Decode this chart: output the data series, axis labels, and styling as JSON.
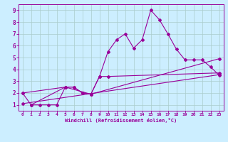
{
  "xlabel": "Windchill (Refroidissement éolien,°C)",
  "bg_color": "#cceeff",
  "line_color": "#990099",
  "grid_color": "#aacccc",
  "xlim": [
    -0.5,
    23.5
  ],
  "ylim": [
    0.5,
    9.5
  ],
  "xticks": [
    0,
    1,
    2,
    3,
    4,
    5,
    6,
    7,
    8,
    9,
    10,
    11,
    12,
    13,
    14,
    15,
    16,
    17,
    18,
    19,
    20,
    21,
    22,
    23
  ],
  "yticks": [
    1,
    2,
    3,
    4,
    5,
    6,
    7,
    8,
    9
  ],
  "series1_x": [
    1,
    2,
    3,
    4,
    5,
    6,
    7,
    8,
    9,
    10,
    11,
    12,
    13,
    14,
    15,
    16,
    17,
    18,
    19,
    20,
    21,
    22,
    23
  ],
  "series1_y": [
    1,
    1,
    1,
    1,
    2.5,
    2.5,
    2,
    1.9,
    3.4,
    5.5,
    6.5,
    7,
    5.8,
    6.5,
    9,
    8.2,
    7,
    5.7,
    4.8,
    4.8,
    4.8,
    4.2,
    3.5
  ],
  "series2_x": [
    0,
    1,
    5,
    6,
    7,
    8,
    9,
    10,
    23
  ],
  "series2_y": [
    2,
    1,
    2.5,
    2.5,
    2,
    1.9,
    3.4,
    3.4,
    3.7
  ],
  "series3_x": [
    0,
    5,
    8,
    23
  ],
  "series3_y": [
    2,
    2.5,
    1.9,
    4.9
  ],
  "series4_x": [
    0,
    23
  ],
  "series4_y": [
    1.1,
    3.55
  ],
  "xlabel_fontsize": 5.0,
  "tick_fontsize": 4.5,
  "ytick_fontsize": 5.5,
  "linewidth": 0.8,
  "markersize": 2.0
}
